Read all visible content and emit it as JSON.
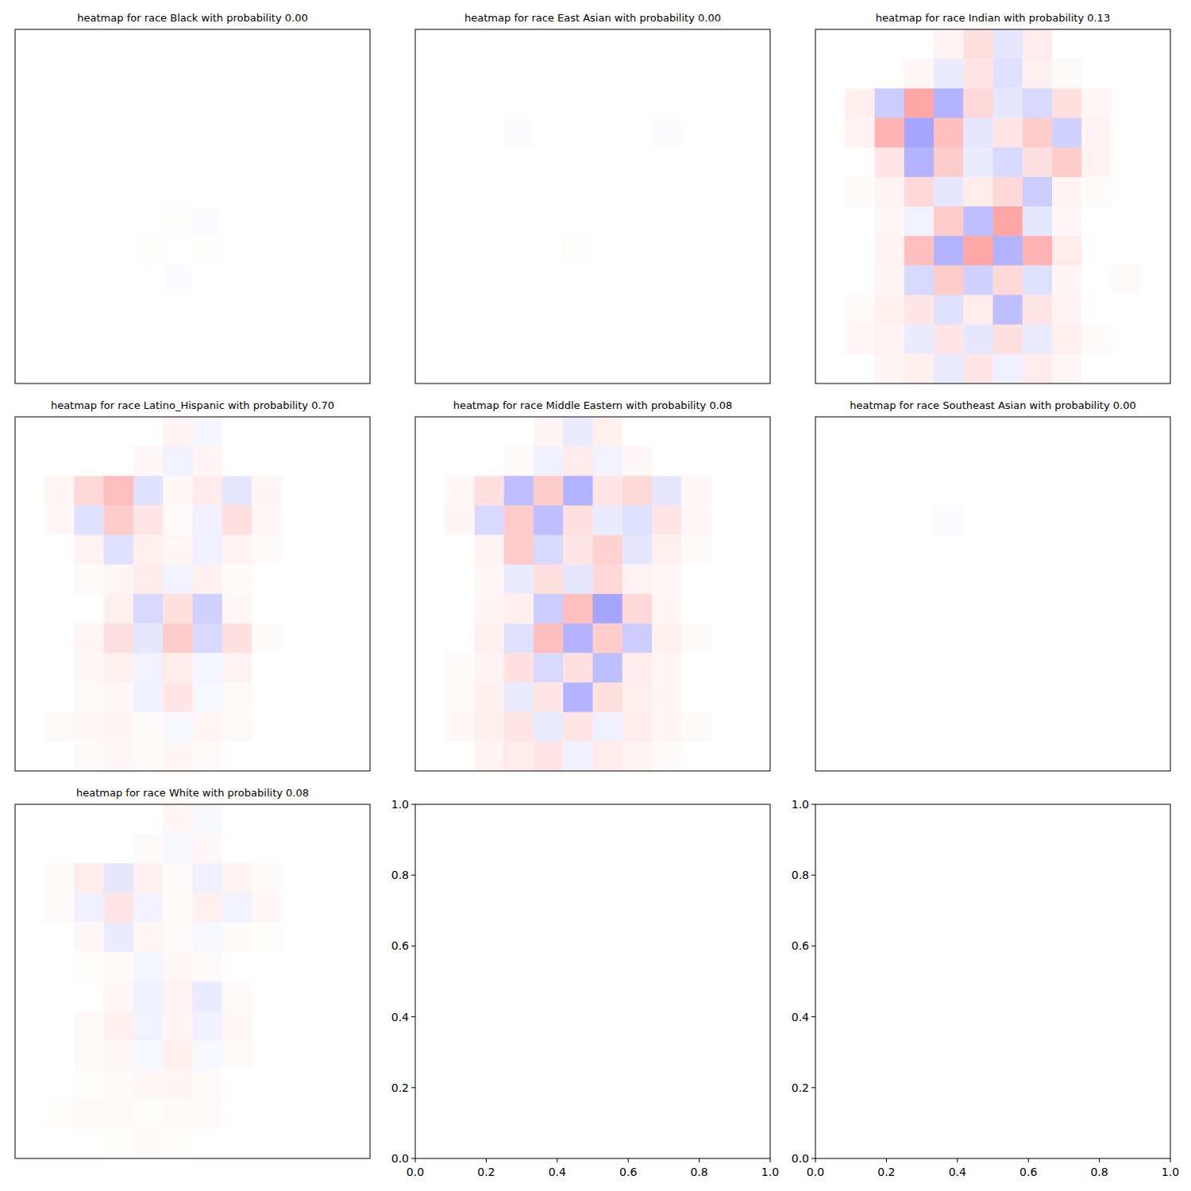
{
  "chart_data": [
    {
      "type": "heatmap",
      "title": "heatmap for race Black with probability 0.00",
      "zlim": [
        -1,
        1
      ],
      "tick_labels": false,
      "cells": [
        [
          0,
          0,
          0,
          0,
          0,
          0,
          0,
          0,
          0,
          0,
          0,
          0
        ],
        [
          0,
          0,
          0,
          0,
          0,
          0,
          0,
          0,
          0,
          0,
          0,
          0
        ],
        [
          0,
          0,
          0,
          0,
          0,
          0,
          0,
          0,
          0,
          0,
          0,
          0
        ],
        [
          0,
          0,
          0,
          0,
          0,
          0,
          0,
          0,
          0,
          0,
          0,
          0
        ],
        [
          0,
          0,
          0,
          0,
          0,
          0,
          0,
          0,
          0,
          0,
          0,
          0
        ],
        [
          0,
          0,
          0,
          0,
          0,
          0,
          0,
          0,
          0,
          0,
          0,
          0
        ],
        [
          0,
          0,
          0,
          0,
          0,
          0.01,
          -0.01,
          0,
          0,
          0,
          0,
          0
        ],
        [
          0,
          0,
          0,
          0,
          0.01,
          0,
          0.01,
          0,
          0,
          0,
          0,
          0
        ],
        [
          0,
          0,
          0,
          0,
          0,
          -0.01,
          0,
          0,
          0,
          0,
          0,
          0
        ],
        [
          0,
          0,
          0,
          0,
          0,
          0,
          0,
          0,
          0,
          0,
          0,
          0
        ],
        [
          0,
          0,
          0,
          0,
          0,
          0,
          0,
          0,
          0,
          0,
          0,
          0
        ],
        [
          0,
          0,
          0,
          0,
          0,
          0,
          0,
          0,
          0,
          0,
          0,
          0
        ]
      ]
    },
    {
      "type": "heatmap",
      "title": "heatmap for race East Asian with probability 0.00",
      "zlim": [
        -1,
        1
      ],
      "tick_labels": false,
      "cells": [
        [
          0,
          0,
          0,
          0,
          0,
          0,
          0,
          0,
          0,
          0,
          0,
          0
        ],
        [
          0,
          0,
          0,
          0,
          0,
          0,
          0,
          0,
          0,
          0,
          0,
          0
        ],
        [
          0,
          0,
          0,
          0,
          0,
          0,
          0,
          0,
          0,
          0,
          0,
          0
        ],
        [
          0,
          0,
          0,
          -0.01,
          0,
          0,
          0,
          0,
          -0.01,
          0,
          0,
          0
        ],
        [
          0,
          0,
          0,
          0,
          0,
          0,
          0,
          0,
          0,
          0,
          0,
          0
        ],
        [
          0,
          0,
          0,
          0,
          0,
          0,
          0,
          0,
          0,
          0,
          0,
          0
        ],
        [
          0,
          0,
          0,
          0,
          0,
          0,
          0,
          0,
          0,
          0,
          0,
          0
        ],
        [
          0,
          0,
          0,
          0,
          0,
          0.01,
          0,
          0,
          0,
          0,
          0,
          0
        ],
        [
          0,
          0,
          0,
          0,
          0,
          0,
          0,
          0,
          0,
          0,
          0,
          0
        ],
        [
          0,
          0,
          0,
          0,
          0,
          0,
          0,
          0,
          0,
          0,
          0,
          0
        ],
        [
          0,
          0,
          0,
          0,
          0,
          0,
          0,
          0,
          0,
          0,
          0,
          0
        ],
        [
          0,
          0,
          0,
          0,
          0,
          0,
          0,
          0,
          0,
          0,
          0,
          0
        ]
      ]
    },
    {
      "type": "heatmap",
      "title": "heatmap for race Indian with probability 0.13",
      "zlim": [
        -1,
        1
      ],
      "tick_labels": false,
      "cells": [
        [
          0,
          0,
          0,
          0,
          0.05,
          0.12,
          -0.1,
          0.08,
          0,
          0,
          0,
          0
        ],
        [
          0,
          0,
          0,
          0.03,
          -0.08,
          0.1,
          -0.12,
          0.06,
          0.02,
          0,
          0,
          0
        ],
        [
          0,
          0.06,
          -0.2,
          0.35,
          -0.3,
          0.15,
          -0.1,
          -0.15,
          0.12,
          0.03,
          0,
          0
        ],
        [
          0,
          0.05,
          0.3,
          -0.35,
          0.25,
          -0.1,
          0.1,
          0.2,
          -0.18,
          0.05,
          0,
          0
        ],
        [
          0,
          0,
          0.1,
          -0.3,
          0.2,
          -0.08,
          -0.15,
          0.12,
          0.2,
          0.05,
          0,
          0
        ],
        [
          0,
          0.02,
          0.05,
          0.15,
          -0.1,
          0.08,
          0.15,
          -0.2,
          0.05,
          0.02,
          0,
          0
        ],
        [
          0,
          0,
          0.03,
          -0.05,
          0.2,
          -0.25,
          0.35,
          -0.1,
          0.03,
          0,
          0,
          0
        ],
        [
          0,
          0,
          0.05,
          0.25,
          -0.3,
          0.35,
          -0.3,
          0.3,
          0.08,
          0,
          0,
          0
        ],
        [
          0,
          0,
          0.04,
          -0.15,
          0.2,
          -0.18,
          0.15,
          -0.12,
          0.04,
          0,
          0.02,
          0
        ],
        [
          0,
          0.02,
          0.06,
          0.1,
          -0.12,
          0.08,
          -0.25,
          0.1,
          0.05,
          0,
          0,
          0
        ],
        [
          0,
          0.03,
          0.05,
          -0.08,
          0.1,
          -0.1,
          0.12,
          -0.08,
          0.06,
          0.02,
          0,
          0
        ],
        [
          0,
          0,
          0.04,
          0.06,
          -0.08,
          0.1,
          -0.06,
          0.08,
          0.03,
          0,
          0,
          0
        ]
      ]
    },
    {
      "type": "heatmap",
      "title": "heatmap for race Latino_Hispanic with probability 0.70",
      "zlim": [
        -1,
        1
      ],
      "tick_labels": false,
      "cells": [
        [
          0,
          0,
          0,
          0,
          0,
          0.05,
          -0.04,
          0,
          0,
          0,
          0,
          0
        ],
        [
          0,
          0,
          0,
          0,
          0.03,
          -0.05,
          0.04,
          0,
          0,
          0,
          0,
          0
        ],
        [
          0,
          0.04,
          0.15,
          0.25,
          -0.12,
          0.03,
          0.08,
          -0.1,
          0.04,
          0,
          0,
          0
        ],
        [
          0,
          0.03,
          -0.12,
          0.2,
          0.1,
          0.02,
          -0.06,
          0.12,
          0.03,
          0,
          0,
          0
        ],
        [
          0,
          0,
          0.05,
          -0.12,
          0.06,
          0.04,
          -0.06,
          0.05,
          0.02,
          0,
          0,
          0
        ],
        [
          0,
          0,
          0.02,
          0.04,
          0.08,
          -0.05,
          0.06,
          0.02,
          0,
          0,
          0,
          0
        ],
        [
          0,
          0,
          0,
          0.06,
          -0.15,
          0.12,
          -0.18,
          0.03,
          0,
          0,
          0,
          0
        ],
        [
          0,
          0,
          0.04,
          0.12,
          -0.1,
          0.2,
          -0.15,
          0.12,
          0.02,
          0,
          0,
          0
        ],
        [
          0,
          0,
          0.03,
          0.06,
          -0.05,
          0.08,
          -0.04,
          0.05,
          0,
          0,
          0,
          0
        ],
        [
          0,
          0,
          0.02,
          0.03,
          -0.06,
          0.1,
          -0.03,
          0.02,
          0,
          0,
          0,
          0
        ],
        [
          0,
          0.02,
          0.03,
          0.04,
          0.02,
          -0.03,
          0.04,
          0.02,
          0,
          0,
          0,
          0
        ],
        [
          0,
          0,
          0.02,
          0.03,
          0.02,
          0.04,
          0.02,
          0,
          0,
          0,
          0,
          0
        ]
      ]
    },
    {
      "type": "heatmap",
      "title": "heatmap for race Middle Eastern with probability 0.08",
      "zlim": [
        -1,
        1
      ],
      "tick_labels": false,
      "cells": [
        [
          0,
          0,
          0,
          0,
          0.04,
          -0.08,
          0.06,
          0,
          0,
          0,
          0,
          0
        ],
        [
          0,
          0,
          0,
          0.02,
          -0.06,
          0.08,
          -0.05,
          0.03,
          0,
          0,
          0,
          0
        ],
        [
          0,
          0.03,
          0.12,
          -0.25,
          0.2,
          -0.3,
          0.1,
          0.15,
          -0.1,
          0.03,
          0,
          0
        ],
        [
          0,
          0.04,
          -0.15,
          0.2,
          -0.25,
          0.12,
          -0.08,
          -0.12,
          0.1,
          0.03,
          0,
          0
        ],
        [
          0,
          0,
          0.05,
          0.2,
          -0.15,
          0.1,
          0.18,
          -0.1,
          0.06,
          0.02,
          0,
          0
        ],
        [
          0,
          0,
          0.03,
          -0.08,
          0.12,
          -0.1,
          0.15,
          0.05,
          0.03,
          0,
          0,
          0
        ],
        [
          0,
          0,
          0.04,
          0.06,
          -0.2,
          0.25,
          -0.35,
          0.15,
          0.04,
          0,
          0,
          0
        ],
        [
          0,
          0,
          0.06,
          -0.12,
          0.25,
          -0.3,
          0.2,
          -0.2,
          0.06,
          0.02,
          0,
          0
        ],
        [
          0,
          0.02,
          0.05,
          0.12,
          -0.15,
          0.12,
          -0.25,
          0.08,
          0.04,
          0,
          0,
          0
        ],
        [
          0,
          0.02,
          0.06,
          -0.08,
          0.1,
          -0.3,
          0.12,
          0.06,
          0.04,
          0,
          0,
          0
        ],
        [
          0,
          0.03,
          0.06,
          0.1,
          -0.08,
          0.1,
          -0.06,
          0.08,
          0.04,
          0.02,
          0,
          0
        ],
        [
          0,
          0,
          0.05,
          0.08,
          0.1,
          -0.06,
          0.08,
          0.05,
          0.02,
          0,
          0,
          0
        ]
      ]
    },
    {
      "type": "heatmap",
      "title": "heatmap for race Southeast Asian with probability 0.00",
      "zlim": [
        -1,
        1
      ],
      "tick_labels": false,
      "cells": [
        [
          0,
          0,
          0,
          0,
          0,
          0,
          0,
          0,
          0,
          0,
          0,
          0
        ],
        [
          0,
          0,
          0,
          0,
          0,
          0,
          0,
          0,
          0,
          0,
          0,
          0
        ],
        [
          0,
          0,
          0,
          0,
          0,
          0,
          0,
          0,
          0,
          0,
          0,
          0
        ],
        [
          0,
          0,
          0,
          0,
          -0.01,
          0,
          0,
          0,
          0,
          0,
          0,
          0
        ],
        [
          0,
          0,
          0,
          0,
          0,
          0,
          0,
          0,
          0,
          0,
          0,
          0
        ],
        [
          0,
          0,
          0,
          0,
          0,
          0,
          0,
          0,
          0,
          0,
          0,
          0
        ],
        [
          0,
          0,
          0,
          0,
          0,
          0,
          0,
          0,
          0,
          0,
          0,
          0
        ],
        [
          0,
          0,
          0,
          0,
          0,
          0,
          0,
          0,
          0,
          0,
          0,
          0
        ],
        [
          0,
          0,
          0,
          0,
          0,
          0,
          0,
          0,
          0,
          0,
          0,
          0
        ],
        [
          0,
          0,
          0,
          0,
          0,
          0,
          0,
          0,
          0,
          0,
          0,
          0
        ],
        [
          0,
          0,
          0,
          0,
          0,
          0,
          0,
          0,
          0,
          0,
          0,
          0
        ],
        [
          0,
          0,
          0,
          0,
          0,
          0,
          0,
          0,
          0,
          0,
          0,
          0
        ]
      ]
    },
    {
      "type": "heatmap",
      "title": "heatmap for race White with probability 0.08",
      "zlim": [
        -1,
        1
      ],
      "tick_labels": false,
      "cells": [
        [
          0,
          0,
          0,
          0,
          0,
          0.04,
          -0.03,
          0,
          0,
          0,
          0,
          0
        ],
        [
          0,
          0,
          0,
          0,
          0.02,
          -0.03,
          0.03,
          0,
          0,
          0,
          0,
          0
        ],
        [
          0,
          0.02,
          0.08,
          -0.1,
          0.06,
          0.02,
          -0.06,
          0.05,
          0.02,
          0,
          0,
          0
        ],
        [
          0,
          0.02,
          -0.06,
          0.1,
          -0.05,
          0.02,
          0.06,
          -0.05,
          0.03,
          0,
          0,
          0
        ],
        [
          0,
          0,
          0.03,
          -0.08,
          0.04,
          0.02,
          -0.03,
          0.02,
          0.01,
          0,
          0,
          0
        ],
        [
          0,
          0,
          0.01,
          0.02,
          -0.04,
          0.03,
          0.02,
          0,
          0,
          0,
          0,
          0
        ],
        [
          0,
          0,
          0,
          0.03,
          -0.06,
          0.05,
          -0.08,
          0.02,
          0,
          0,
          0,
          0
        ],
        [
          0,
          0,
          0.02,
          0.06,
          -0.05,
          0.04,
          -0.06,
          0.03,
          0,
          0,
          0,
          0
        ],
        [
          0,
          0,
          0.02,
          0.03,
          -0.03,
          0.06,
          -0.03,
          0.02,
          0,
          0,
          0,
          0
        ],
        [
          0,
          0,
          0.01,
          0.02,
          0.03,
          0.04,
          0.02,
          0,
          0,
          0,
          0,
          0
        ],
        [
          0,
          0.01,
          0.02,
          0.02,
          0.01,
          0.02,
          0.02,
          0,
          0,
          0,
          0,
          0
        ],
        [
          0,
          0,
          0,
          0.01,
          0.02,
          0.01,
          0,
          0,
          0,
          0,
          0,
          0
        ]
      ]
    },
    {
      "type": "empty",
      "xlim": [
        0,
        1
      ],
      "ylim": [
        0,
        1
      ],
      "xticks": [
        {
          "value": 0,
          "label": "0.0"
        },
        {
          "value": 0.2,
          "label": "0.2"
        },
        {
          "value": 0.4,
          "label": "0.4"
        },
        {
          "value": 0.6,
          "label": "0.6"
        },
        {
          "value": 0.8,
          "label": "0.8"
        },
        {
          "value": 1,
          "label": "1.0"
        }
      ],
      "yticks": [
        {
          "value": 0,
          "label": "0.0"
        },
        {
          "value": 0.2,
          "label": "0.2"
        },
        {
          "value": 0.4,
          "label": "0.4"
        },
        {
          "value": 0.6,
          "label": "0.6"
        },
        {
          "value": 0.8,
          "label": "0.8"
        },
        {
          "value": 1,
          "label": "1.0"
        }
      ]
    },
    {
      "type": "empty",
      "xlim": [
        0,
        1
      ],
      "ylim": [
        0,
        1
      ],
      "xticks": [
        {
          "value": 0,
          "label": "0.0"
        },
        {
          "value": 0.2,
          "label": "0.2"
        },
        {
          "value": 0.4,
          "label": "0.4"
        },
        {
          "value": 0.6,
          "label": "0.6"
        },
        {
          "value": 0.8,
          "label": "0.8"
        },
        {
          "value": 1,
          "label": "1.0"
        }
      ],
      "yticks": [
        {
          "value": 0,
          "label": "0.0"
        },
        {
          "value": 0.2,
          "label": "0.2"
        },
        {
          "value": 0.4,
          "label": "0.4"
        },
        {
          "value": 0.6,
          "label": "0.6"
        },
        {
          "value": 0.8,
          "label": "0.8"
        },
        {
          "value": 1,
          "label": "1.0"
        }
      ]
    }
  ]
}
